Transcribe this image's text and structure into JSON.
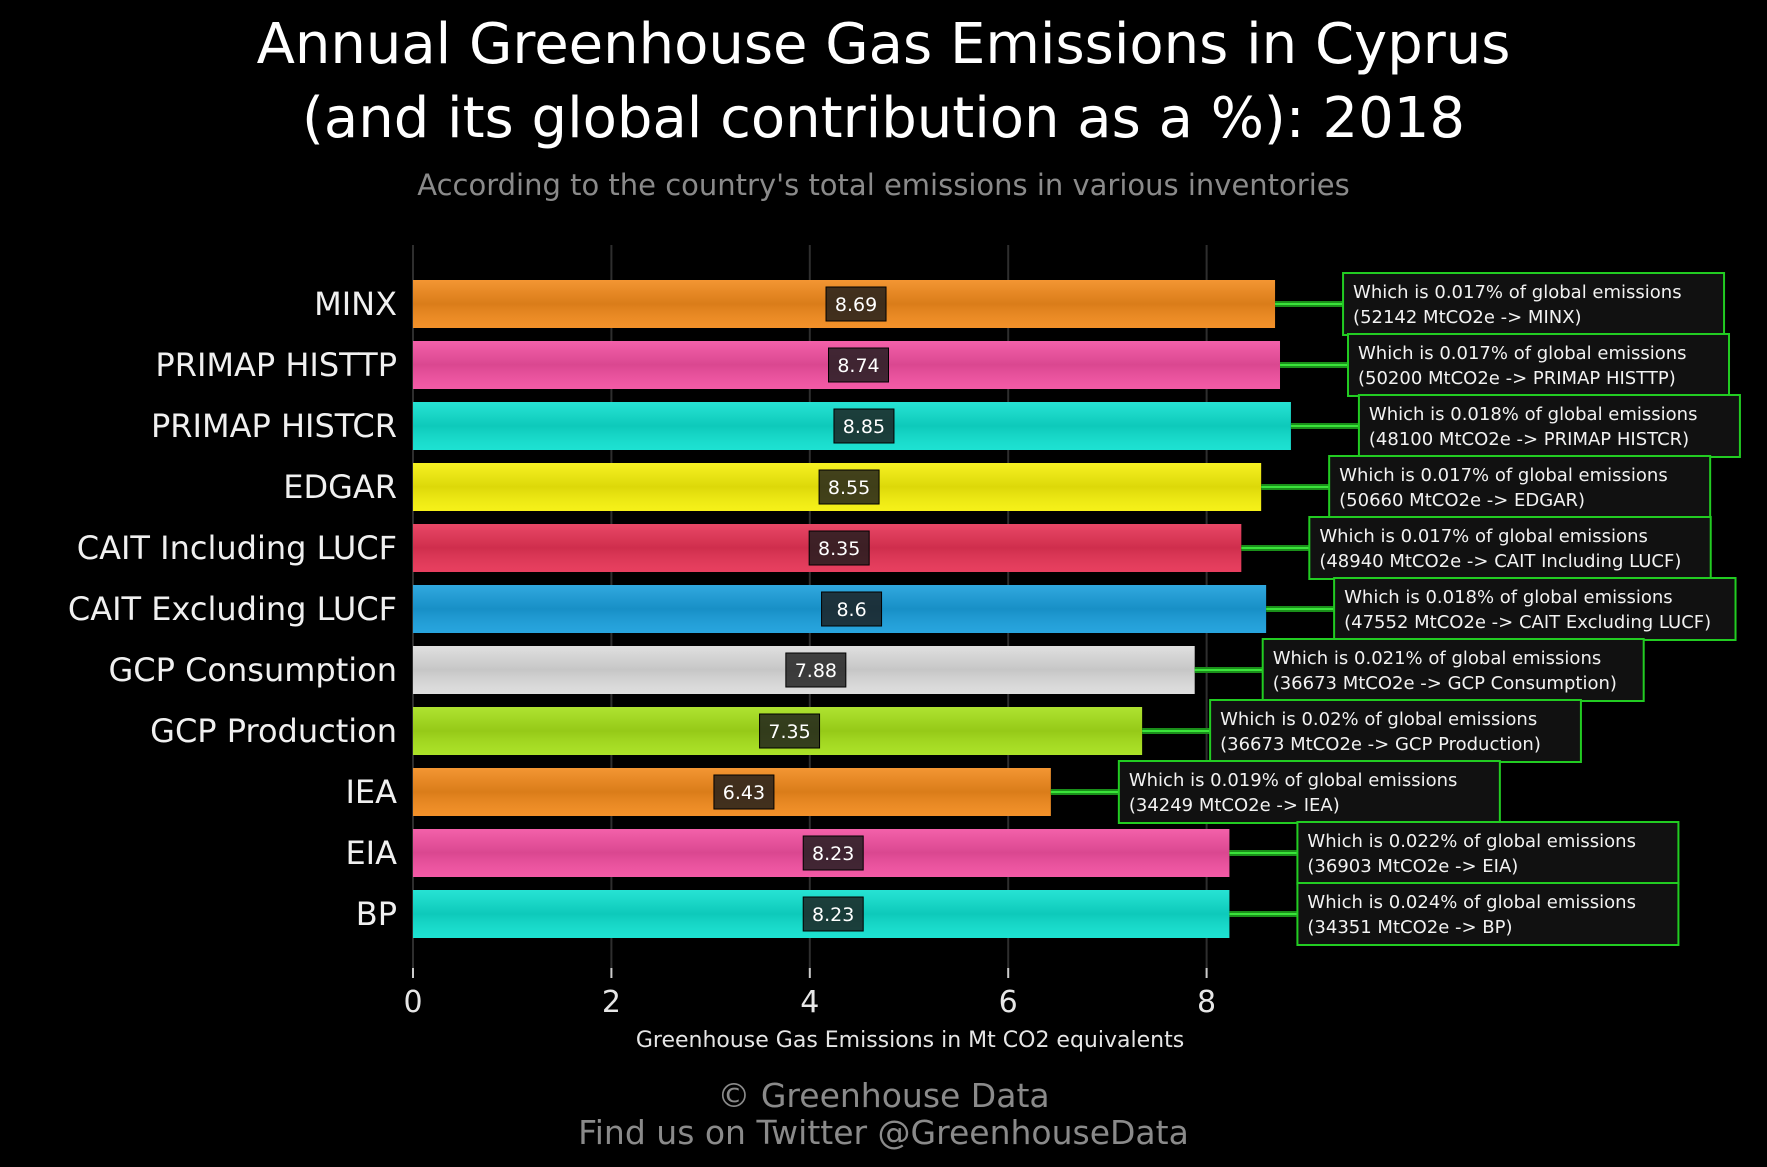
{
  "title_line1": "Annual Greenhouse Gas Emissions in Cyprus",
  "title_line2": "(and its global contribution as a %): 2018",
  "subtitle": "According to the country's total emissions in various inventories",
  "credit_line1": "© Greenhouse Data",
  "credit_line2": "Find us on Twitter @GreenhouseData",
  "chart_data": {
    "type": "bar",
    "orientation": "horizontal",
    "xlabel": "Greenhouse Gas Emissions in Mt CO2 equivalents",
    "ylabel": "",
    "xlim": [
      0,
      9.2
    ],
    "xticks": [
      0,
      2,
      4,
      6,
      8
    ],
    "grid": "vertical",
    "categories": [
      "MINX",
      "PRIMAP HISTTP",
      "PRIMAP HISTCR",
      "EDGAR",
      "CAIT Including LUCF",
      "CAIT Excluding LUCF",
      "GCP Consumption",
      "GCP Production",
      "IEA",
      "EIA",
      "BP"
    ],
    "values": [
      8.69,
      8.74,
      8.85,
      8.55,
      8.35,
      8.6,
      7.88,
      7.35,
      6.43,
      8.23,
      8.23
    ],
    "value_labels": [
      "8.69",
      "8.74",
      "8.85",
      "8.55",
      "8.35",
      "8.6",
      "7.88",
      "7.35",
      "6.43",
      "8.23",
      "8.23"
    ],
    "colors": [
      "#f28a1c",
      "#f24fa0",
      "#0fe0cf",
      "#f5f00a",
      "#e63355",
      "#1a9fdc",
      "#dcdcdc",
      "#a6e01a",
      "#f28a1c",
      "#f24fa0",
      "#0fe0cf"
    ],
    "annotations": [
      {
        "line1": "Which is 0.017% of global emissions",
        "line2": "(52142 MtCO2e -> MINX)"
      },
      {
        "line1": "Which is 0.017% of global emissions",
        "line2": "(50200 MtCO2e -> PRIMAP HISTTP)"
      },
      {
        "line1": "Which is 0.018% of global emissions",
        "line2": "(48100 MtCO2e -> PRIMAP HISTCR)"
      },
      {
        "line1": "Which is 0.017% of global emissions",
        "line2": "(50660 MtCO2e -> EDGAR)"
      },
      {
        "line1": "Which is 0.017% of global emissions",
        "line2": "(48940 MtCO2e -> CAIT Including LUCF)"
      },
      {
        "line1": "Which is 0.018% of global emissions",
        "line2": "(47552 MtCO2e -> CAIT Excluding LUCF)"
      },
      {
        "line1": "Which is 0.021% of global emissions",
        "line2": "(36673 MtCO2e -> GCP Consumption)"
      },
      {
        "line1": "Which is 0.02% of global emissions",
        "line2": "(36673 MtCO2e -> GCP Production)"
      },
      {
        "line1": "Which is 0.019% of global emissions",
        "line2": "(34249 MtCO2e -> IEA)"
      },
      {
        "line1": "Which is 0.022% of global emissions",
        "line2": "(36903 MtCO2e -> EIA)"
      },
      {
        "line1": "Which is 0.024% of global emissions",
        "line2": "(34351 MtCO2e -> BP)"
      }
    ],
    "annotation_border_color": "#22cc22",
    "annotation_bg_color": "#111111"
  }
}
